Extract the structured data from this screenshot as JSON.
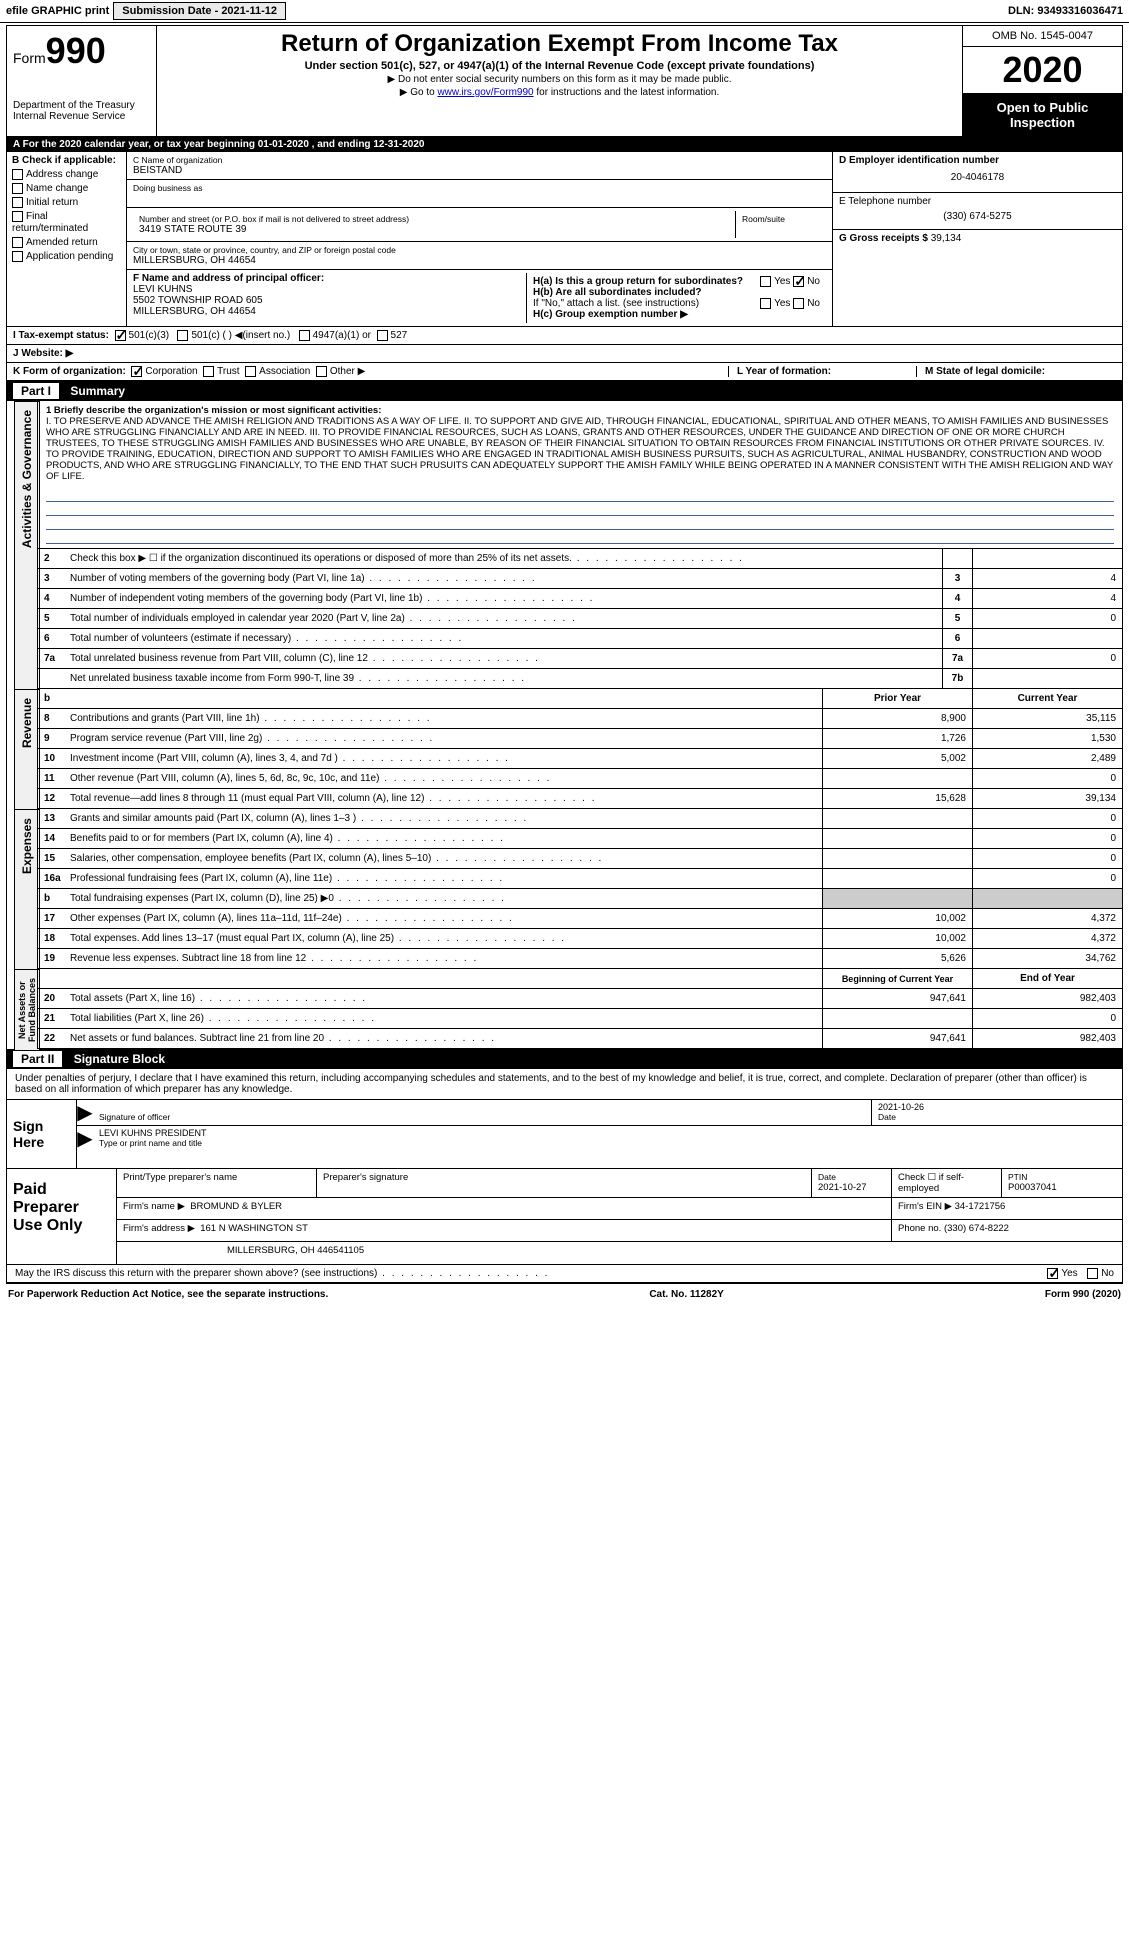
{
  "top": {
    "efile": "efile GRAPHIC print",
    "submission_label": "Submission Date - 2021-11-12",
    "dln": "DLN: 93493316036471"
  },
  "header": {
    "form_prefix": "Form",
    "form_number": "990",
    "dept": "Department of the Treasury",
    "irs": "Internal Revenue Service",
    "title": "Return of Organization Exempt From Income Tax",
    "subtitle": "Under section 501(c), 527, or 4947(a)(1) of the Internal Revenue Code (except private foundations)",
    "note1": "▶ Do not enter social security numbers on this form as it may be made public.",
    "note2_pre": "▶ Go to ",
    "note2_link": "www.irs.gov/Form990",
    "note2_post": " for instructions and the latest information.",
    "omb": "OMB No. 1545-0047",
    "year": "2020",
    "inspect": "Open to Public Inspection"
  },
  "period": "A For the 2020 calendar year, or tax year beginning 01-01-2020    , and ending 12-31-2020",
  "box_b": {
    "title": "B Check if applicable:",
    "items": [
      "Address change",
      "Name change",
      "Initial return",
      "Final return/terminated",
      "Amended return",
      "Application pending"
    ]
  },
  "box_c": {
    "name_label": "C Name of organization",
    "name": "BEISTAND",
    "dba_label": "Doing business as",
    "addr_label": "Number and street (or P.O. box if mail is not delivered to street address)",
    "addr": "3419 STATE ROUTE 39",
    "room_label": "Room/suite",
    "city_label": "City or town, state or province, country, and ZIP or foreign postal code",
    "city": "MILLERSBURG, OH  44654",
    "officer_label": "F Name and address of principal officer:",
    "officer_name": "LEVI KUHNS",
    "officer_addr1": "5502 TOWNSHIP ROAD 605",
    "officer_addr2": "MILLERSBURG, OH  44654"
  },
  "box_d": {
    "ein_label": "D Employer identification number",
    "ein": "20-4046178",
    "tel_label": "E Telephone number",
    "tel": "(330) 674-5275",
    "gross_label": "G Gross receipts $",
    "gross": "39,134",
    "ha_label": "H(a)  Is this a group return for subordinates?",
    "hb_label": "H(b)  Are all subordinates included?",
    "hb_note": "If \"No,\" attach a list. (see instructions)",
    "hc_label": "H(c)  Group exemption number ▶",
    "yes": "Yes",
    "no": "No"
  },
  "tax_status": {
    "label": "I  Tax-exempt status:",
    "opts": [
      "501(c)(3)",
      "501(c) (  ) ◀(insert no.)",
      "4947(a)(1) or",
      "527"
    ]
  },
  "website": {
    "label": "J  Website: ▶"
  },
  "k_row": {
    "k": "K Form of organization:",
    "opts": [
      "Corporation",
      "Trust",
      "Association",
      "Other ▶"
    ],
    "l": "L Year of formation:",
    "m": "M State of legal domicile:"
  },
  "part1_title": "Summary",
  "lane_ag": "Activities & Governance",
  "lane_rev": "Revenue",
  "lane_exp": "Expenses",
  "lane_net": "Net Assets or Fund Balances",
  "mission": {
    "label": "1   Briefly describe the organization's mission or most significant activities:",
    "text": "I. TO PRESERVE AND ADVANCE THE AMISH RELIGION AND TRADITIONS AS A WAY OF LIFE. II. TO SUPPORT AND GIVE AID, THROUGH FINANCIAL, EDUCATIONAL, SPIRITUAL AND OTHER MEANS, TO AMISH FAMILIES AND BUSINESSES WHO ARE STRUGGLING FINANCIALLY AND ARE IN NEED. III. TO PROVIDE FINANCIAL RESOURCES, SUCH AS LOANS, GRANTS AND OTHER RESOURCES, UNDER THE GUIDANCE AND DIRECTION OF ONE OR MORE CHURCH TRUSTEES, TO THESE STRUGGLING AMISH FAMILIES AND BUSINESSES WHO ARE UNABLE, BY REASON OF THEIR FINANCIAL SITUATION TO OBTAIN RESOURCES FROM FINANCIAL INSTITUTIONS OR OTHER PRIVATE SOURCES. IV. TO PROVIDE TRAINING, EDUCATION, DIRECTION AND SUPPORT TO AMISH FAMILIES WHO ARE ENGAGED IN TRADITIONAL AMISH BUSINESS PURSUITS, SUCH AS AGRICULTURAL, ANIMAL HUSBANDRY, CONSTRUCTION AND WOOD PRODUCTS, AND WHO ARE STRUGGLING FINANCIALLY, TO THE END THAT SUCH PRUSUITS CAN ADEQUATELY SUPPORT THE AMISH FAMILY WHILE BEING OPERATED IN A MANNER CONSISTENT WITH THE AMISH RELIGION AND WAY OF LIFE."
  },
  "lines_ag": [
    {
      "n": "2",
      "d": "Check this box ▶ ☐ if the organization discontinued its operations or disposed of more than 25% of its net assets.",
      "box": "",
      "v": ""
    },
    {
      "n": "3",
      "d": "Number of voting members of the governing body (Part VI, line 1a)",
      "box": "3",
      "v": "4"
    },
    {
      "n": "4",
      "d": "Number of independent voting members of the governing body (Part VI, line 1b)",
      "box": "4",
      "v": "4"
    },
    {
      "n": "5",
      "d": "Total number of individuals employed in calendar year 2020 (Part V, line 2a)",
      "box": "5",
      "v": "0"
    },
    {
      "n": "6",
      "d": "Total number of volunteers (estimate if necessary)",
      "box": "6",
      "v": ""
    },
    {
      "n": "7a",
      "d": "Total unrelated business revenue from Part VIII, column (C), line 12",
      "box": "7a",
      "v": "0"
    },
    {
      "n": "",
      "d": "Net unrelated business taxable income from Form 990-T, line 39",
      "box": "7b",
      "v": ""
    }
  ],
  "col_hdr": {
    "prior": "Prior Year",
    "current": "Current Year"
  },
  "lines_rev": [
    {
      "n": "8",
      "d": "Contributions and grants (Part VIII, line 1h)",
      "p": "8,900",
      "c": "35,115"
    },
    {
      "n": "9",
      "d": "Program service revenue (Part VIII, line 2g)",
      "p": "1,726",
      "c": "1,530"
    },
    {
      "n": "10",
      "d": "Investment income (Part VIII, column (A), lines 3, 4, and 7d )",
      "p": "5,002",
      "c": "2,489"
    },
    {
      "n": "11",
      "d": "Other revenue (Part VIII, column (A), lines 5, 6d, 8c, 9c, 10c, and 11e)",
      "p": "",
      "c": "0"
    },
    {
      "n": "12",
      "d": "Total revenue—add lines 8 through 11 (must equal Part VIII, column (A), line 12)",
      "p": "15,628",
      "c": "39,134"
    }
  ],
  "lines_exp": [
    {
      "n": "13",
      "d": "Grants and similar amounts paid (Part IX, column (A), lines 1–3 )",
      "p": "",
      "c": "0"
    },
    {
      "n": "14",
      "d": "Benefits paid to or for members (Part IX, column (A), line 4)",
      "p": "",
      "c": "0"
    },
    {
      "n": "15",
      "d": "Salaries, other compensation, employee benefits (Part IX, column (A), lines 5–10)",
      "p": "",
      "c": "0"
    },
    {
      "n": "16a",
      "d": "Professional fundraising fees (Part IX, column (A), line 11e)",
      "p": "",
      "c": "0"
    },
    {
      "n": "b",
      "d": "Total fundraising expenses (Part IX, column (D), line 25) ▶0",
      "p": "SHADE",
      "c": "SHADE"
    },
    {
      "n": "17",
      "d": "Other expenses (Part IX, column (A), lines 11a–11d, 11f–24e)",
      "p": "10,002",
      "c": "4,372"
    },
    {
      "n": "18",
      "d": "Total expenses. Add lines 13–17 (must equal Part IX, column (A), line 25)",
      "p": "10,002",
      "c": "4,372"
    },
    {
      "n": "19",
      "d": "Revenue less expenses. Subtract line 18 from line 12",
      "p": "5,626",
      "c": "34,762"
    }
  ],
  "col_hdr2": {
    "begin": "Beginning of Current Year",
    "end": "End of Year"
  },
  "lines_net": [
    {
      "n": "20",
      "d": "Total assets (Part X, line 16)",
      "p": "947,641",
      "c": "982,403"
    },
    {
      "n": "21",
      "d": "Total liabilities (Part X, line 26)",
      "p": "",
      "c": "0"
    },
    {
      "n": "22",
      "d": "Net assets or fund balances. Subtract line 21 from line 20",
      "p": "947,641",
      "c": "982,403"
    }
  ],
  "part2_title": "Signature Block",
  "sig_text": "Under penalties of perjury, I declare that I have examined this return, including accompanying schedules and statements, and to the best of my knowledge and belief, it is true, correct, and complete. Declaration of preparer (other than officer) is based on all information of which preparer has any knowledge.",
  "sign": {
    "here": "Sign Here",
    "sig_label": "Signature of officer",
    "date_label": "Date",
    "date": "2021-10-26",
    "name": "LEVI KUHNS  PRESIDENT",
    "name_label": "Type or print name and title"
  },
  "paid": {
    "title": "Paid Preparer Use Only",
    "h1": "Print/Type preparer's name",
    "h2": "Preparer's signature",
    "h3": "Date",
    "h3v": "2021-10-27",
    "h4": "Check ☐ if self-employed",
    "h5": "PTIN",
    "h5v": "P00037041",
    "firm_label": "Firm's name    ▶",
    "firm": "BROMUND & BYLER",
    "ein_label": "Firm's EIN ▶",
    "ein": "34-1721756",
    "addr_label": "Firm's address ▶",
    "addr1": "161 N WASHINGTON ST",
    "addr2": "MILLERSBURG, OH  446541105",
    "phone_label": "Phone no.",
    "phone": "(330) 674-8222"
  },
  "discuss": {
    "q": "May the IRS discuss this return with the preparer shown above? (see instructions)",
    "yes": "Yes",
    "no": "No"
  },
  "footer": {
    "pra": "For Paperwork Reduction Act Notice, see the separate instructions.",
    "cat": "Cat. No. 11282Y",
    "form": "Form 990 (2020)"
  }
}
